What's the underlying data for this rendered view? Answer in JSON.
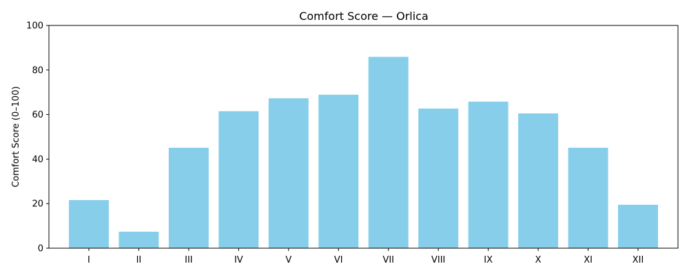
{
  "chart_data": {
    "type": "bar",
    "title": "Comfort Score — Orlica",
    "xlabel": "",
    "ylabel": "Comfort Score (0–100)",
    "categories": [
      "I",
      "II",
      "III",
      "IV",
      "V",
      "VI",
      "VII",
      "VIII",
      "IX",
      "X",
      "XI",
      "XII"
    ],
    "values": [
      21.6,
      7.4,
      45.1,
      61.5,
      67.3,
      68.9,
      85.9,
      62.7,
      65.8,
      60.5,
      45.1,
      19.5
    ],
    "ylim": [
      0,
      100
    ],
    "yticks": [
      0,
      20,
      40,
      60,
      80,
      100
    ],
    "grid": false,
    "bar_color": "#87CEEB"
  }
}
